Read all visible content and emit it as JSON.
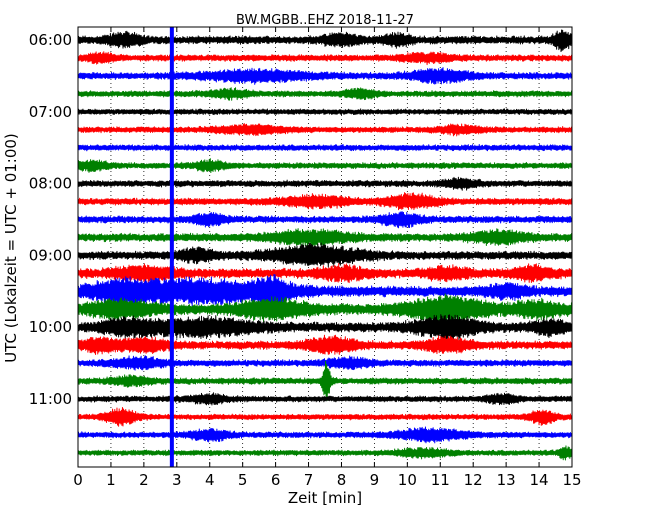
{
  "chart_data": {
    "type": "line",
    "title": "BW.MGBB..EHZ 2018-11-27",
    "xlabel": "Zeit  [min]",
    "ylabel": "UTC (Lokalzeit = UTC + 01:00)",
    "xlim": [
      0,
      15
    ],
    "xticks": [
      0,
      1,
      2,
      3,
      4,
      5,
      6,
      7,
      8,
      9,
      10,
      11,
      12,
      13,
      14,
      15
    ],
    "xtick_labels": [
      "0",
      "1",
      "2",
      "3",
      "4",
      "5",
      "6",
      "7",
      "8",
      "9",
      "10",
      "11",
      "12",
      "13",
      "14",
      "15"
    ],
    "ytick_labels": [
      "06:00",
      "07:00",
      "08:00",
      "09:00",
      "10:00",
      "11:00"
    ],
    "ytick_rows": [
      0,
      4,
      8,
      12,
      16,
      20
    ],
    "rows_per_hour": 4,
    "minutes_per_row": 15,
    "row_colors": [
      "#000000",
      "#ff0000",
      "#0000ff",
      "#008000"
    ],
    "grid": true,
    "grid_style": "dotted vertical",
    "event_marker": {
      "minute": 2.85,
      "color": "#0000ff"
    },
    "traces": [
      {
        "start": "06:00",
        "color": "#000000",
        "base_amp": 0.35,
        "bursts": [
          {
            "t": 1.4,
            "w": 0.5,
            "a": 0.55
          },
          {
            "t": 8.0,
            "w": 0.6,
            "a": 0.45
          },
          {
            "t": 9.7,
            "w": 0.4,
            "a": 0.5
          },
          {
            "t": 14.7,
            "w": 0.25,
            "a": 0.9
          }
        ]
      },
      {
        "start": "06:15",
        "color": "#ff0000",
        "base_amp": 0.28,
        "bursts": [
          {
            "t": 0.7,
            "w": 0.4,
            "a": 0.4
          },
          {
            "t": 10.6,
            "w": 0.8,
            "a": 0.35
          }
        ]
      },
      {
        "start": "06:30",
        "color": "#0000ff",
        "base_amp": 0.3,
        "bursts": [
          {
            "t": 5.4,
            "w": 1.6,
            "a": 0.5
          },
          {
            "t": 11.0,
            "w": 0.9,
            "a": 0.55
          }
        ]
      },
      {
        "start": "06:45",
        "color": "#008000",
        "base_amp": 0.27,
        "bursts": [
          {
            "t": 4.6,
            "w": 0.6,
            "a": 0.35
          },
          {
            "t": 8.6,
            "w": 0.5,
            "a": 0.35
          }
        ]
      },
      {
        "start": "07:00",
        "color": "#000000",
        "base_amp": 0.24,
        "bursts": []
      },
      {
        "start": "07:15",
        "color": "#ff0000",
        "base_amp": 0.26,
        "bursts": [
          {
            "t": 5.2,
            "w": 1.0,
            "a": 0.35
          },
          {
            "t": 11.6,
            "w": 0.6,
            "a": 0.35
          }
        ]
      },
      {
        "start": "07:30",
        "color": "#0000ff",
        "base_amp": 0.26,
        "bursts": []
      },
      {
        "start": "07:45",
        "color": "#008000",
        "base_amp": 0.26,
        "bursts": [
          {
            "t": 0.4,
            "w": 0.5,
            "a": 0.4
          },
          {
            "t": 4.0,
            "w": 0.5,
            "a": 0.4
          }
        ]
      },
      {
        "start": "08:00",
        "color": "#000000",
        "base_amp": 0.28,
        "bursts": [
          {
            "t": 11.6,
            "w": 0.5,
            "a": 0.4
          }
        ]
      },
      {
        "start": "08:15",
        "color": "#ff0000",
        "base_amp": 0.3,
        "bursts": [
          {
            "t": 7.2,
            "w": 1.0,
            "a": 0.5
          },
          {
            "t": 10.1,
            "w": 0.8,
            "a": 0.6
          }
        ]
      },
      {
        "start": "08:30",
        "color": "#0000ff",
        "base_amp": 0.3,
        "bursts": [
          {
            "t": 4.0,
            "w": 0.5,
            "a": 0.45
          },
          {
            "t": 9.8,
            "w": 0.6,
            "a": 0.55
          }
        ]
      },
      {
        "start": "08:45",
        "color": "#008000",
        "base_amp": 0.36,
        "bursts": [
          {
            "t": 7.0,
            "w": 1.2,
            "a": 0.55
          },
          {
            "t": 12.8,
            "w": 0.8,
            "a": 0.5
          }
        ]
      },
      {
        "start": "09:00",
        "color": "#000000",
        "base_amp": 0.36,
        "bursts": [
          {
            "t": 7.2,
            "w": 1.4,
            "a": 0.85
          },
          {
            "t": 3.6,
            "w": 0.6,
            "a": 0.5
          }
        ]
      },
      {
        "start": "09:15",
        "color": "#ff0000",
        "base_amp": 0.42,
        "bursts": [
          {
            "t": 2.0,
            "w": 0.9,
            "a": 0.55
          },
          {
            "t": 8.0,
            "w": 0.7,
            "a": 0.5
          },
          {
            "t": 11.2,
            "w": 0.6,
            "a": 0.5
          },
          {
            "t": 13.8,
            "w": 0.6,
            "a": 0.55
          }
        ]
      },
      {
        "start": "09:30",
        "color": "#0000ff",
        "base_amp": 0.46,
        "bursts": [
          {
            "t": 1.3,
            "w": 0.9,
            "a": 0.6
          },
          {
            "t": 3.6,
            "w": 2.5,
            "a": 0.95
          },
          {
            "t": 5.9,
            "w": 0.5,
            "a": 0.8
          },
          {
            "t": 13.0,
            "w": 0.6,
            "a": 0.5
          }
        ]
      },
      {
        "start": "09:45",
        "color": "#008000",
        "base_amp": 0.5,
        "bursts": [
          {
            "t": 1.3,
            "w": 0.9,
            "a": 0.7
          },
          {
            "t": 5.9,
            "w": 1.0,
            "a": 0.8
          },
          {
            "t": 11.2,
            "w": 1.2,
            "a": 0.95
          },
          {
            "t": 14.0,
            "w": 0.7,
            "a": 0.6
          }
        ]
      },
      {
        "start": "10:00",
        "color": "#000000",
        "base_amp": 0.42,
        "bursts": [
          {
            "t": 1.5,
            "w": 0.8,
            "a": 0.6
          },
          {
            "t": 3.8,
            "w": 1.6,
            "a": 0.75
          },
          {
            "t": 11.2,
            "w": 1.0,
            "a": 0.9
          },
          {
            "t": 14.3,
            "w": 0.5,
            "a": 0.6
          }
        ]
      },
      {
        "start": "10:15",
        "color": "#ff0000",
        "base_amp": 0.36,
        "bursts": [
          {
            "t": 0.6,
            "w": 0.5,
            "a": 0.55
          },
          {
            "t": 2.0,
            "w": 0.8,
            "a": 0.55
          },
          {
            "t": 7.7,
            "w": 0.7,
            "a": 0.7
          },
          {
            "t": 11.2,
            "w": 0.7,
            "a": 0.6
          }
        ]
      },
      {
        "start": "10:30",
        "color": "#0000ff",
        "base_amp": 0.28,
        "bursts": [
          {
            "t": 1.8,
            "w": 0.8,
            "a": 0.45
          },
          {
            "t": 8.2,
            "w": 0.7,
            "a": 0.4
          }
        ]
      },
      {
        "start": "10:45",
        "color": "#008000",
        "base_amp": 0.28,
        "bursts": [
          {
            "t": 1.6,
            "w": 0.6,
            "a": 0.35
          },
          {
            "t": 7.55,
            "w": 0.12,
            "a": 1.9
          }
        ]
      },
      {
        "start": "11:00",
        "color": "#000000",
        "base_amp": 0.26,
        "bursts": [
          {
            "t": 4.0,
            "w": 0.6,
            "a": 0.35
          },
          {
            "t": 12.9,
            "w": 0.5,
            "a": 0.35
          }
        ]
      },
      {
        "start": "11:15",
        "color": "#ff0000",
        "base_amp": 0.24,
        "bursts": [
          {
            "t": 1.3,
            "w": 0.5,
            "a": 0.75
          },
          {
            "t": 14.1,
            "w": 0.4,
            "a": 0.6
          }
        ]
      },
      {
        "start": "11:30",
        "color": "#0000ff",
        "base_amp": 0.26,
        "bursts": [
          {
            "t": 4.0,
            "w": 0.6,
            "a": 0.45
          },
          {
            "t": 10.7,
            "w": 1.0,
            "a": 0.55
          }
        ]
      },
      {
        "start": "11:45",
        "color": "#008000",
        "base_amp": 0.24,
        "bursts": [
          {
            "t": 10.5,
            "w": 0.8,
            "a": 0.35
          },
          {
            "t": 14.8,
            "w": 0.2,
            "a": 0.5
          }
        ]
      }
    ]
  }
}
